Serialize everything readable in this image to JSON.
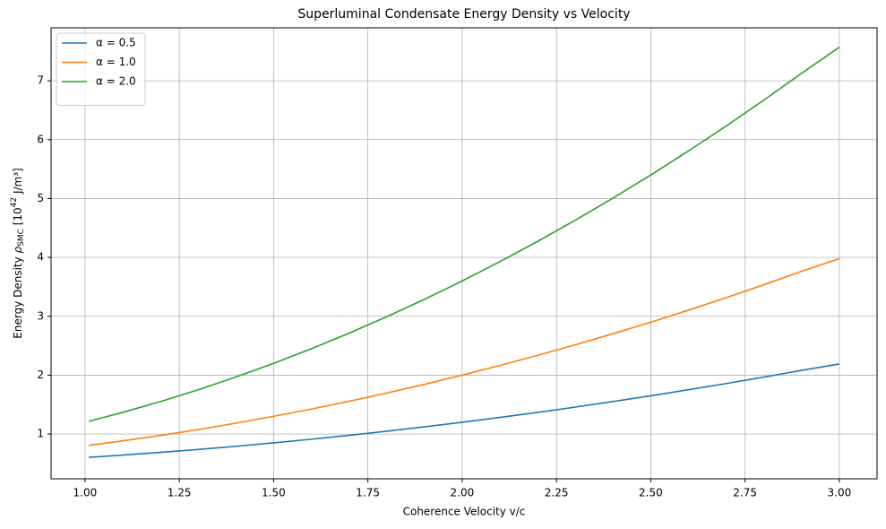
{
  "chart_data": {
    "type": "line",
    "title": "Superluminal Condensate Energy Density vs Velocity",
    "xlabel": "Coherence Velocity v/c",
    "ylabel": [
      "Energy Density ",
      "ρ",
      "SMC",
      " [10",
      "42",
      " J/m³]"
    ],
    "x": [
      1.01,
      1.1,
      1.2,
      1.3,
      1.4,
      1.5,
      1.6,
      1.7,
      1.8,
      1.9,
      2.0,
      2.1,
      2.2,
      2.3,
      2.4,
      2.5,
      2.6,
      2.7,
      2.8,
      2.9,
      3.0
    ],
    "series": [
      {
        "name": "α = 0.5",
        "color": "#1f77b4",
        "values": [
          0.604,
          0.642,
          0.688,
          0.738,
          0.792,
          0.85,
          0.912,
          0.978,
          1.048,
          1.122,
          1.2,
          1.282,
          1.368,
          1.458,
          1.552,
          1.65,
          1.752,
          1.858,
          1.968,
          2.082,
          2.19
        ]
      },
      {
        "name": "α = 1.0",
        "color": "#ff7f0e",
        "values": [
          0.808,
          0.884,
          0.976,
          1.076,
          1.184,
          1.3,
          1.424,
          1.556,
          1.696,
          1.844,
          2.0,
          2.164,
          2.336,
          2.516,
          2.704,
          2.9,
          3.104,
          3.316,
          3.536,
          3.764,
          3.98
        ]
      },
      {
        "name": "α = 2.0",
        "color": "#2ca02c",
        "values": [
          1.216,
          1.368,
          1.552,
          1.752,
          1.968,
          2.2,
          2.448,
          2.712,
          2.992,
          3.288,
          3.6,
          3.928,
          4.272,
          4.632,
          5.008,
          5.4,
          5.808,
          6.232,
          6.672,
          7.128,
          7.57
        ]
      }
    ],
    "xlim": [
      0.91,
      3.1
    ],
    "ylim": [
      0.24,
      7.9
    ],
    "xticks": [
      {
        "value": 1,
        "label": "1.00"
      },
      1.25,
      {
        "value": 1.5,
        "label": "1.50"
      },
      1.75,
      {
        "value": 2,
        "label": "2.00"
      },
      2.25,
      {
        "value": 2.5,
        "label": "2.50"
      },
      2.75,
      {
        "value": 3,
        "label": "3.00"
      }
    ],
    "yticks": [
      1,
      2,
      3,
      4,
      5,
      6,
      7
    ],
    "grid": true,
    "legend": "upper-left"
  }
}
